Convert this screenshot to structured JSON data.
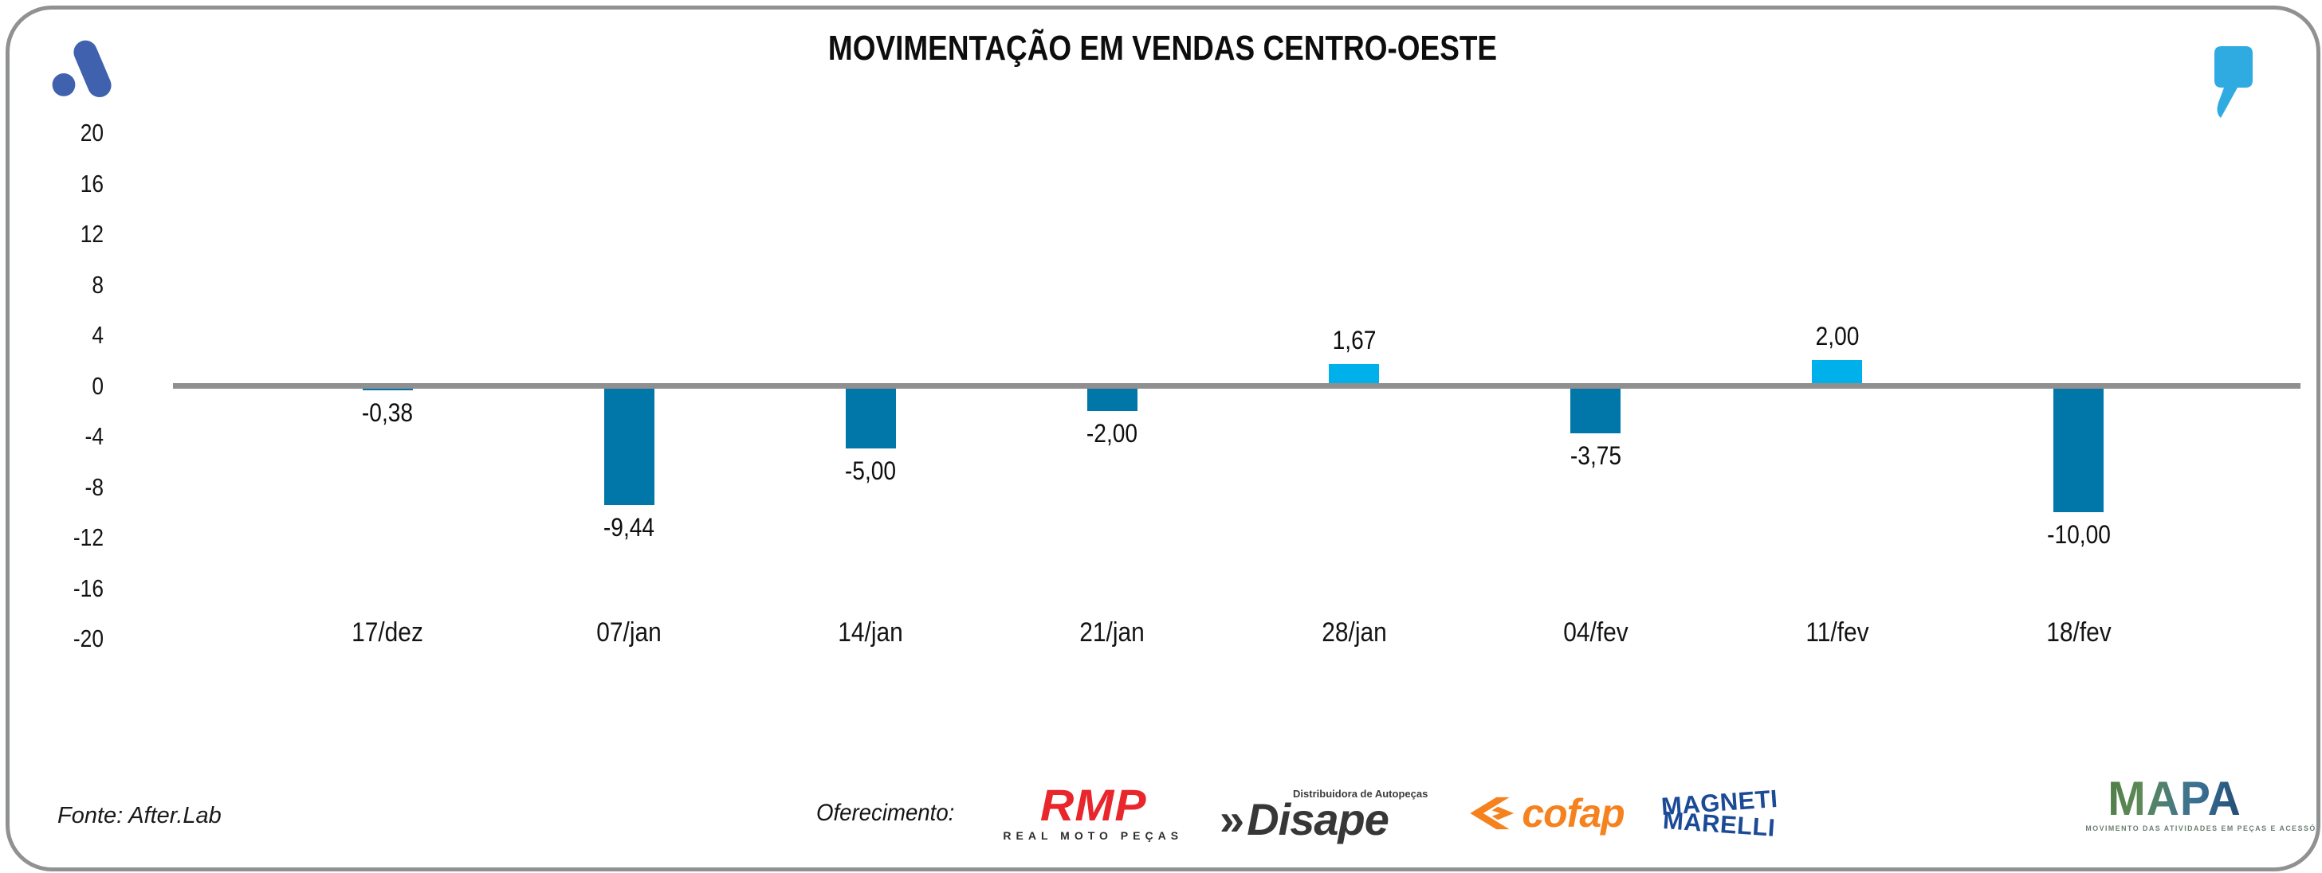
{
  "header": {
    "afterlab_logo_color": "#3f61ae",
    "quote_icon_color": "#2fabe1"
  },
  "chart_data": {
    "type": "bar",
    "title": "MOVIMENTAÇÃO EM VENDAS CENTRO-OESTE",
    "categories": [
      "17/dez",
      "07/jan",
      "14/jan",
      "21/jan",
      "28/jan",
      "04/fev",
      "11/fev",
      "18/fev"
    ],
    "values": [
      -0.38,
      -9.44,
      -5.0,
      -2.0,
      1.67,
      -3.75,
      2.0,
      -10.0
    ],
    "value_labels": [
      "-0,38",
      "-9,44",
      "-5,00",
      "-2,00",
      "1,67",
      "-3,75",
      "2,00",
      "-10,00"
    ],
    "yticks": [
      20,
      16,
      12,
      8,
      4,
      0,
      -4,
      -8,
      -12,
      -16,
      -20
    ],
    "ylim": [
      -20,
      20
    ],
    "grid": false,
    "legend": null,
    "xlabel": "",
    "ylabel": "",
    "bar_color_negative": "#0077a8",
    "bar_color_positive": "#00b0ea",
    "axis_line_color": "#8f8f8f"
  },
  "footer": {
    "fonte": "Fonte: After.Lab",
    "oferecimento_label": "Oferecimento:",
    "sponsors": [
      {
        "name": "RMP",
        "subtitle": "REAL MOTO PEÇAS",
        "color": "#e8262b"
      },
      {
        "name": "Disape",
        "prefix": "»",
        "subtitle": "Distribuidora de Autopeças",
        "color": "#373737"
      },
      {
        "name": "cofap",
        "color": "#f5821f"
      },
      {
        "name": "Magneti Marelli",
        "line1": "MAGNETI",
        "line2": "MARELLI",
        "color": "#1b4a96"
      }
    ],
    "mapa": {
      "name": "MAPA",
      "tagline": "MOVIMENTO DAS ATIVIDADES EM PEÇAS E ACESSÓRIOS"
    }
  }
}
